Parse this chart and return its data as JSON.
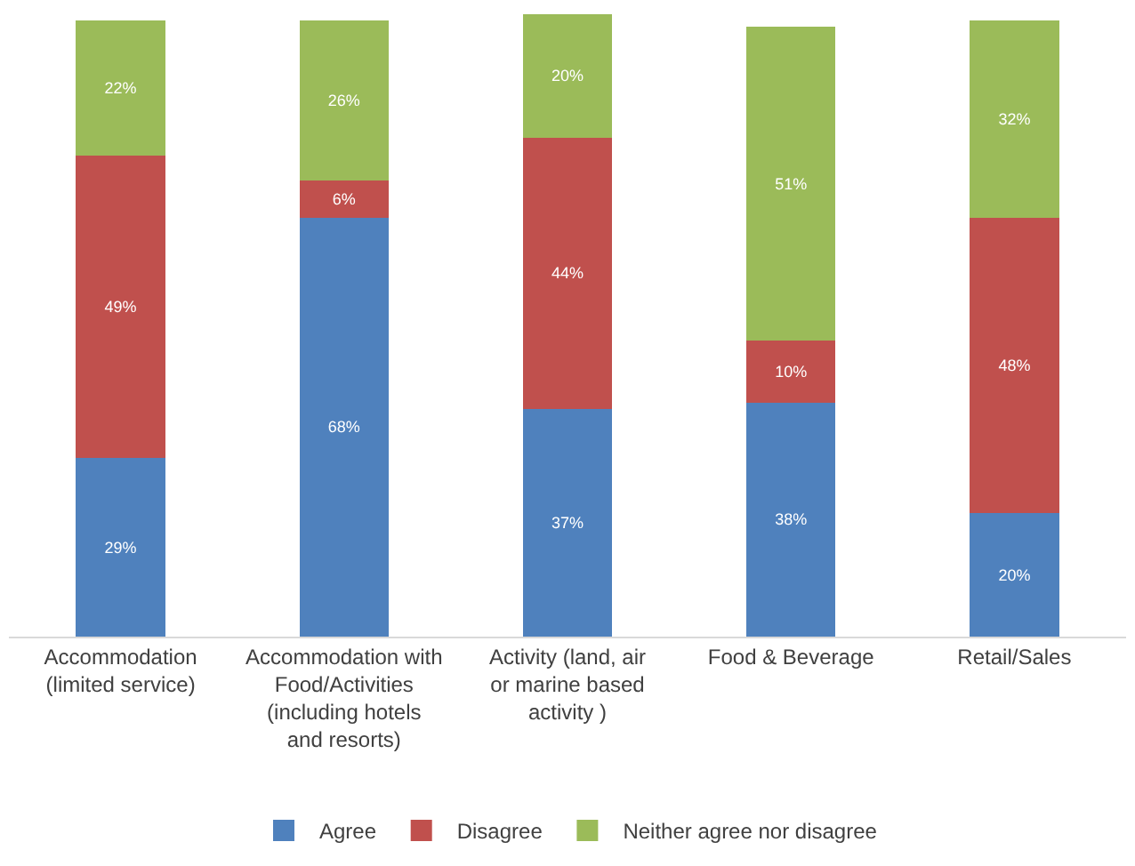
{
  "chart_data": {
    "type": "bar",
    "stacked": true,
    "legend": "bottom",
    "categories": [
      "Accommodation (limited service)",
      "Accommodation with Food/Activities (including hotels and resorts)",
      "Activity (land, air or marine based activity )",
      "Food & Beverage",
      "Retail/Sales"
    ],
    "series": [
      {
        "name": "Agree",
        "color": "#4f81bd",
        "values": [
          29,
          68,
          37,
          38,
          20
        ],
        "value_labels": [
          "29%",
          "68%",
          "37%",
          "38%",
          "20%"
        ]
      },
      {
        "name": "Disagree",
        "color": "#c0504d",
        "values": [
          49,
          6,
          44,
          10,
          48
        ],
        "value_labels": [
          "49%",
          "6%",
          "44%",
          "10%",
          "48%"
        ]
      },
      {
        "name": "Neither agree nor disagree",
        "color": "#9bbb59",
        "values": [
          22,
          26,
          20,
          51,
          32
        ],
        "value_labels": [
          "22%",
          "26%",
          "20%",
          "51%",
          "32%"
        ]
      }
    ]
  }
}
